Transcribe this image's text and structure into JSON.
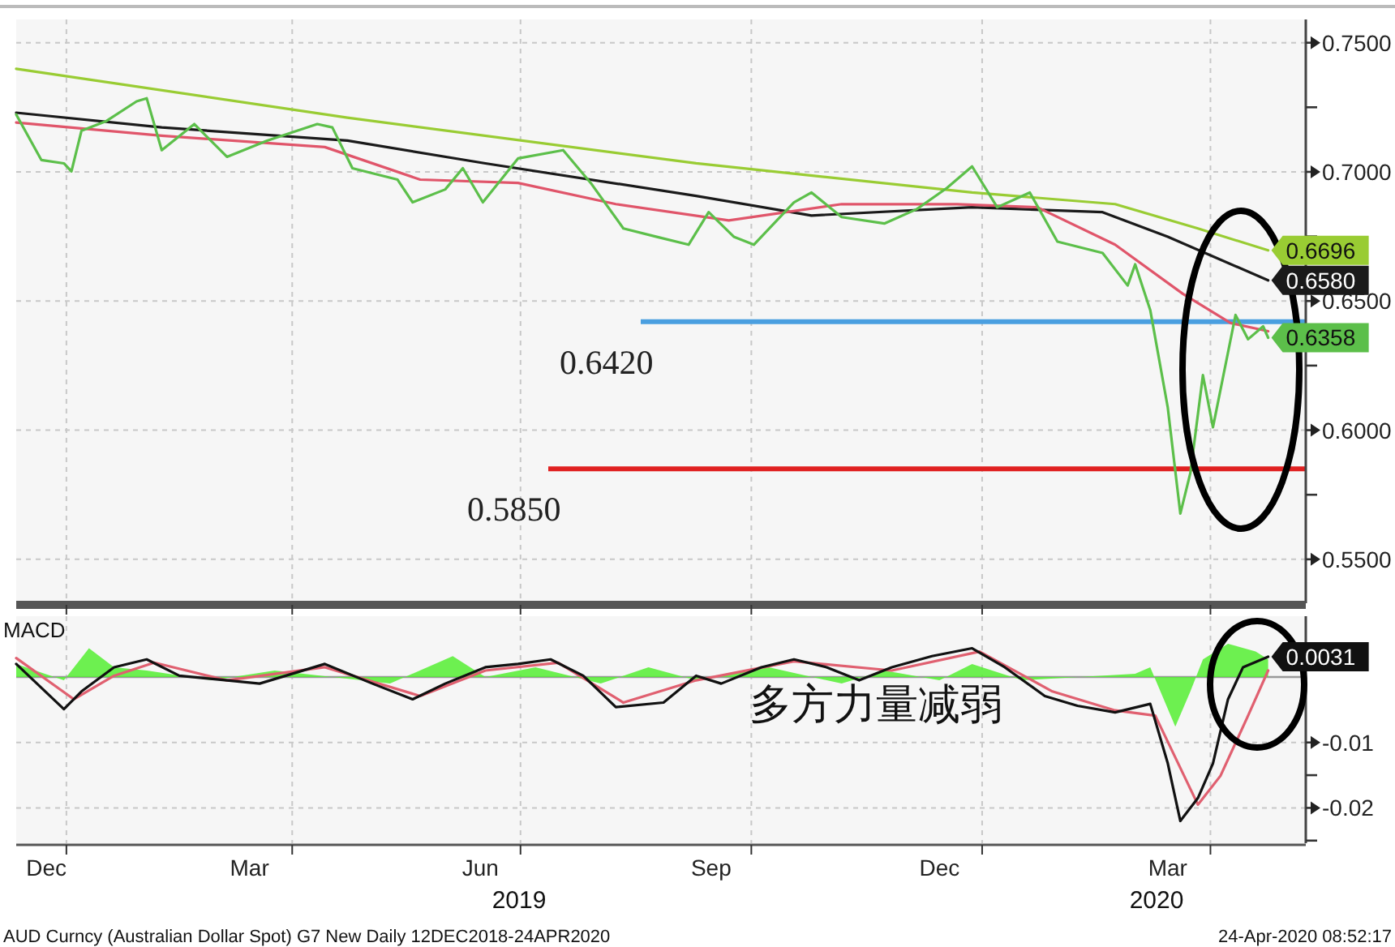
{
  "chart_data": [
    {
      "type": "line",
      "xlim": [
        "2018-12-12",
        "2020-05-09"
      ],
      "ylim": [
        0.533,
        0.759
      ],
      "xticks": [
        {
          "value": "2019-01-01",
          "label": null
        },
        {
          "value": "2019-04-01",
          "label": null
        },
        {
          "value": "2019-07-01",
          "label": null
        },
        {
          "value": "2019-10-01",
          "label": null
        },
        {
          "value": "2020-01-01",
          "label": null
        },
        {
          "value": "2020-04-01",
          "label": null
        }
      ],
      "yticks": [
        {
          "value": 0.75,
          "label": "0.7500"
        },
        {
          "value": 0.7,
          "label": "0.7000"
        },
        {
          "value": 0.65,
          "label": "0.6500"
        },
        {
          "value": 0.6,
          "label": "0.6000"
        },
        {
          "value": 0.55,
          "label": "0.5500"
        },
        {
          "value": 0.725,
          "label": null
        },
        {
          "value": 0.675,
          "label": null
        },
        {
          "value": 0.625,
          "label": null
        },
        {
          "value": 0.575,
          "label": null
        }
      ],
      "tick_labels": "y",
      "grid": true,
      "ref_lines": [
        {
          "axis": "y",
          "value": 0.642,
          "label": "0.6420",
          "color": "#4a9fe0"
        },
        {
          "axis": "y",
          "value": 0.585,
          "label": "0.5850",
          "color": "#e02020"
        }
      ],
      "series": [
        {
          "color": "#99cc33",
          "x": [
            "2018-12-12",
            "2019-04-23",
            "2019-09-09",
            "2019-12-28",
            "2020-02-23",
            "2020-03-27",
            "2020-04-24"
          ],
          "values": [
            0.7399,
            0.721,
            0.7033,
            0.692,
            0.6875,
            0.6781,
            0.6696
          ],
          "value_labels": [
            null,
            null,
            null,
            null,
            null,
            null,
            "0.6696"
          ]
        },
        {
          "color": "#1a1a1a",
          "x": [
            "2018-12-12",
            "2019-02-08",
            "2019-04-23",
            "2019-06-17",
            "2019-09-09",
            "2019-10-25",
            "2019-12-28",
            "2020-02-18",
            "2020-03-15",
            "2020-04-24"
          ],
          "values": [
            0.7229,
            0.7172,
            0.7121,
            0.7033,
            0.6907,
            0.6831,
            0.6863,
            0.6844,
            0.6749,
            0.658
          ],
          "value_labels": [
            null,
            null,
            null,
            null,
            null,
            null,
            null,
            null,
            null,
            "0.6580"
          ]
        },
        {
          "color": "#e0556a",
          "x": [
            "2018-12-12",
            "2019-02-08",
            "2019-04-14",
            "2019-05-22",
            "2019-06-30",
            "2019-08-08",
            "2019-09-22",
            "2019-11-06",
            "2019-12-22",
            "2020-01-23",
            "2020-02-23",
            "2020-03-21",
            "2020-04-09",
            "2020-04-24"
          ],
          "values": [
            0.7191,
            0.714,
            0.7096,
            0.697,
            0.6957,
            0.6875,
            0.6812,
            0.6875,
            0.6875,
            0.6863,
            0.6718,
            0.6528,
            0.6415,
            0.6383
          ]
        },
        {
          "color": "#5cbf4a",
          "x": [
            "2018-12-12",
            "2018-12-22",
            "2018-12-31",
            "2019-01-03",
            "2019-01-07",
            "2019-01-17",
            "2019-01-29",
            "2019-02-02",
            "2019-02-08",
            "2019-02-21",
            "2019-03-06",
            "2019-03-22",
            "2019-04-11",
            "2019-04-17",
            "2019-04-25",
            "2019-05-13",
            "2019-05-19",
            "2019-06-01",
            "2019-06-08",
            "2019-06-16",
            "2019-06-30",
            "2019-07-18",
            "2019-07-29",
            "2019-08-11",
            "2019-08-24",
            "2019-09-06",
            "2019-09-14",
            "2019-09-24",
            "2019-10-02",
            "2019-10-18",
            "2019-10-25",
            "2019-11-06",
            "2019-11-23",
            "2019-12-06",
            "2019-12-18",
            "2019-12-28",
            "2020-01-07",
            "2020-01-20",
            "2020-01-31",
            "2020-02-18",
            "2020-02-28",
            "2020-03-02",
            "2020-03-08",
            "2020-03-15",
            "2020-03-20",
            "2020-03-24",
            "2020-03-29",
            "2020-04-02",
            "2020-04-11",
            "2020-04-16",
            "2020-04-22",
            "2020-04-24"
          ],
          "values": [
            0.7222,
            0.7046,
            0.7033,
            0.7002,
            0.7159,
            0.7197,
            0.7273,
            0.7285,
            0.7084,
            0.7185,
            0.7058,
            0.7121,
            0.7185,
            0.7172,
            0.7014,
            0.697,
            0.6882,
            0.6932,
            0.7014,
            0.6882,
            0.7052,
            0.7084,
            0.6957,
            0.6781,
            0.6749,
            0.6718,
            0.6844,
            0.6749,
            0.6718,
            0.6882,
            0.692,
            0.6825,
            0.68,
            0.6856,
            0.6938,
            0.7021,
            0.6863,
            0.692,
            0.673,
            0.6686,
            0.656,
            0.6642,
            0.6465,
            0.6087,
            0.5677,
            0.5834,
            0.6213,
            0.6011,
            0.6446,
            0.6352,
            0.6402,
            0.6358
          ],
          "value_labels": [
            null,
            null,
            null,
            null,
            null,
            null,
            null,
            null,
            null,
            null,
            null,
            null,
            null,
            null,
            null,
            null,
            null,
            null,
            null,
            null,
            null,
            null,
            null,
            null,
            null,
            null,
            null,
            null,
            null,
            null,
            null,
            null,
            null,
            null,
            null,
            null,
            null,
            null,
            null,
            null,
            null,
            null,
            null,
            null,
            null,
            null,
            null,
            null,
            null,
            null,
            null,
            "0.6358"
          ]
        }
      ]
    },
    {
      "type": "line",
      "title": "MACD",
      "xlim": [
        "2018-12-12",
        "2020-05-09"
      ],
      "ylim": [
        -0.0254,
        0.0093
      ],
      "xticks": [
        {
          "value": "2018-12-24",
          "label": "Dec"
        },
        {
          "value": "2019-03-15",
          "label": "Mar"
        },
        {
          "value": "2019-06-15",
          "label": "Jun"
        },
        {
          "value": "2019-09-15",
          "label": "Sep"
        },
        {
          "value": "2019-12-15",
          "label": "Dec"
        },
        {
          "value": "2020-03-15",
          "label": "Mar"
        },
        {
          "value": "2019-01-01",
          "label": null
        },
        {
          "value": "2019-04-01",
          "label": null
        },
        {
          "value": "2019-07-01",
          "label": null
        },
        {
          "value": "2019-10-01",
          "label": null
        },
        {
          "value": "2020-01-01",
          "label": null
        },
        {
          "value": "2020-04-01",
          "label": null
        }
      ],
      "yticks": [
        {
          "value": -0.01,
          "label": "-0.01"
        },
        {
          "value": -0.02,
          "label": "-0.02"
        },
        {
          "value": -0.015,
          "label": null
        },
        {
          "value": -0.025,
          "label": null
        }
      ],
      "grid": true,
      "ref_lines": [
        {
          "axis": "y",
          "value": 0,
          "color": "#999999"
        }
      ],
      "series": [
        {
          "type": "area",
          "color": "#55ee33",
          "x": [
            "2018-12-12",
            "2018-12-31",
            "2019-01-10",
            "2019-01-20",
            "2019-02-02",
            "2019-02-28",
            "2019-03-25",
            "2019-05-10",
            "2019-06-04",
            "2019-06-17",
            "2019-07-07",
            "2019-08-02",
            "2019-08-21",
            "2019-09-09",
            "2019-10-08",
            "2019-11-06",
            "2019-11-23",
            "2019-12-15",
            "2019-12-28",
            "2020-01-17",
            "2020-03-02",
            "2020-03-08",
            "2020-03-18",
            "2020-03-24",
            "2020-03-29",
            "2020-04-08",
            "2020-04-19",
            "2020-04-24"
          ],
          "values": [
            0.002,
            -0.0005,
            0.0044,
            0.0015,
            0.001,
            -0.0005,
            0.001,
            -0.001,
            0.0032,
            0.0,
            0.0015,
            -0.001,
            0.0015,
            -0.0005,
            0.0015,
            -0.001,
            0.001,
            -0.0005,
            0.002,
            -0.0005,
            0.0005,
            0.0015,
            -0.0076,
            -0.0022,
            0.0027,
            0.0051,
            0.0039,
            0.0027
          ]
        },
        {
          "color": "#e06070",
          "x": [
            "2018-12-12",
            "2019-01-04",
            "2019-01-20",
            "2019-02-05",
            "2019-03-06",
            "2019-04-14",
            "2019-05-22",
            "2019-06-17",
            "2019-07-16",
            "2019-08-11",
            "2019-09-09",
            "2019-10-18",
            "2019-11-26",
            "2019-12-31",
            "2020-01-29",
            "2020-02-23",
            "2020-03-10",
            "2020-03-27",
            "2020-04-05",
            "2020-04-16",
            "2020-04-24"
          ],
          "values": [
            0.0029,
            -0.0034,
            0.0002,
            0.0022,
            -0.0005,
            0.0015,
            -0.0029,
            0.001,
            0.0022,
            -0.0039,
            -0.0005,
            0.0024,
            0.001,
            0.0039,
            -0.0022,
            -0.0051,
            -0.0059,
            -0.0195,
            -0.0151,
            -0.0059,
            0.001
          ]
        },
        {
          "color": "#111111",
          "x": [
            "2018-12-12",
            "2018-12-31",
            "2019-01-07",
            "2019-01-20",
            "2019-02-02",
            "2019-02-15",
            "2019-03-06",
            "2019-03-19",
            "2019-04-14",
            "2019-05-03",
            "2019-05-19",
            "2019-06-01",
            "2019-06-17",
            "2019-06-30",
            "2019-07-13",
            "2019-07-26",
            "2019-08-08",
            "2019-08-27",
            "2019-09-09",
            "2019-09-19",
            "2019-10-05",
            "2019-10-18",
            "2019-10-31",
            "2019-11-13",
            "2019-11-26",
            "2019-12-12",
            "2019-12-28",
            "2020-01-10",
            "2020-01-26",
            "2020-02-08",
            "2020-02-23",
            "2020-03-08",
            "2020-03-15",
            "2020-03-20",
            "2020-03-27",
            "2020-04-02",
            "2020-04-08",
            "2020-04-14",
            "2020-04-24"
          ],
          "values": [
            0.002,
            -0.0049,
            -0.0022,
            0.0015,
            0.0027,
            0.0002,
            -0.0005,
            -0.001,
            0.002,
            -0.001,
            -0.0034,
            -0.001,
            0.0015,
            0.002,
            0.0027,
            0.0002,
            -0.0046,
            -0.0039,
            0.0002,
            -0.001,
            0.0015,
            0.0027,
            0.0015,
            -0.0005,
            0.0015,
            0.0032,
            0.0044,
            0.0015,
            -0.0029,
            -0.0044,
            -0.0054,
            -0.0041,
            -0.0132,
            -0.022,
            -0.0185,
            -0.0132,
            -0.0034,
            0.0015,
            0.0031
          ],
          "value_labels": [
            null,
            null,
            null,
            null,
            null,
            null,
            null,
            null,
            null,
            null,
            null,
            null,
            null,
            null,
            null,
            null,
            null,
            null,
            null,
            null,
            null,
            null,
            null,
            null,
            null,
            null,
            null,
            null,
            null,
            null,
            null,
            null,
            null,
            null,
            null,
            null,
            null,
            null,
            "0.0031"
          ]
        }
      ],
      "annotations": [
        "多方力量减弱",
        "2019",
        "2020",
        "AUD Curncy (Australian Dollar Spot) G7 New  Daily 12DEC2018-24APR2020",
        "24-Apr-2020 08:52:17"
      ]
    }
  ]
}
